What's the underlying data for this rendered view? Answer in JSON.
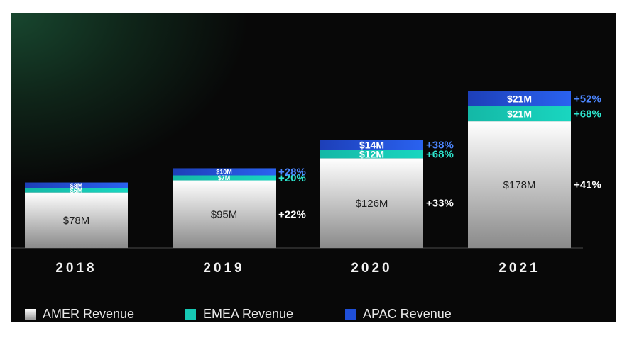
{
  "chart_data": {
    "type": "bar",
    "stacked": true,
    "categories": [
      "2018",
      "2019",
      "2020",
      "2021"
    ],
    "series": [
      {
        "name": "AMER Revenue",
        "color": "#e6e6e6",
        "values": [
          78,
          95,
          126,
          178
        ],
        "labels": [
          "$78M",
          "$95M",
          "$126M",
          "$178M"
        ],
        "growth": [
          "",
          "+22%",
          "+33%",
          "+41%"
        ]
      },
      {
        "name": "EMEA Revenue",
        "color": "#16c9b4",
        "values": [
          6,
          7,
          12,
          21
        ],
        "labels": [
          "$6M",
          "$7M",
          "$12M",
          "$21M"
        ],
        "growth": [
          "",
          "+20%",
          "+68%",
          "+68%"
        ]
      },
      {
        "name": "APAC Revenue",
        "color": "#1f4fd8",
        "values": [
          8,
          10,
          14,
          21
        ],
        "labels": [
          "$8M",
          "$10M",
          "$14M",
          "$21M"
        ],
        "growth": [
          "",
          "+28%",
          "+38%",
          "+52%"
        ]
      }
    ],
    "growth_colors": {
      "AMER Revenue": "#ffffff",
      "EMEA Revenue": "#2ee6cf",
      "APAC Revenue": "#4c86ff"
    },
    "ylim": [
      0,
      220
    ],
    "grid": false,
    "legend_position": "bottom-left"
  }
}
